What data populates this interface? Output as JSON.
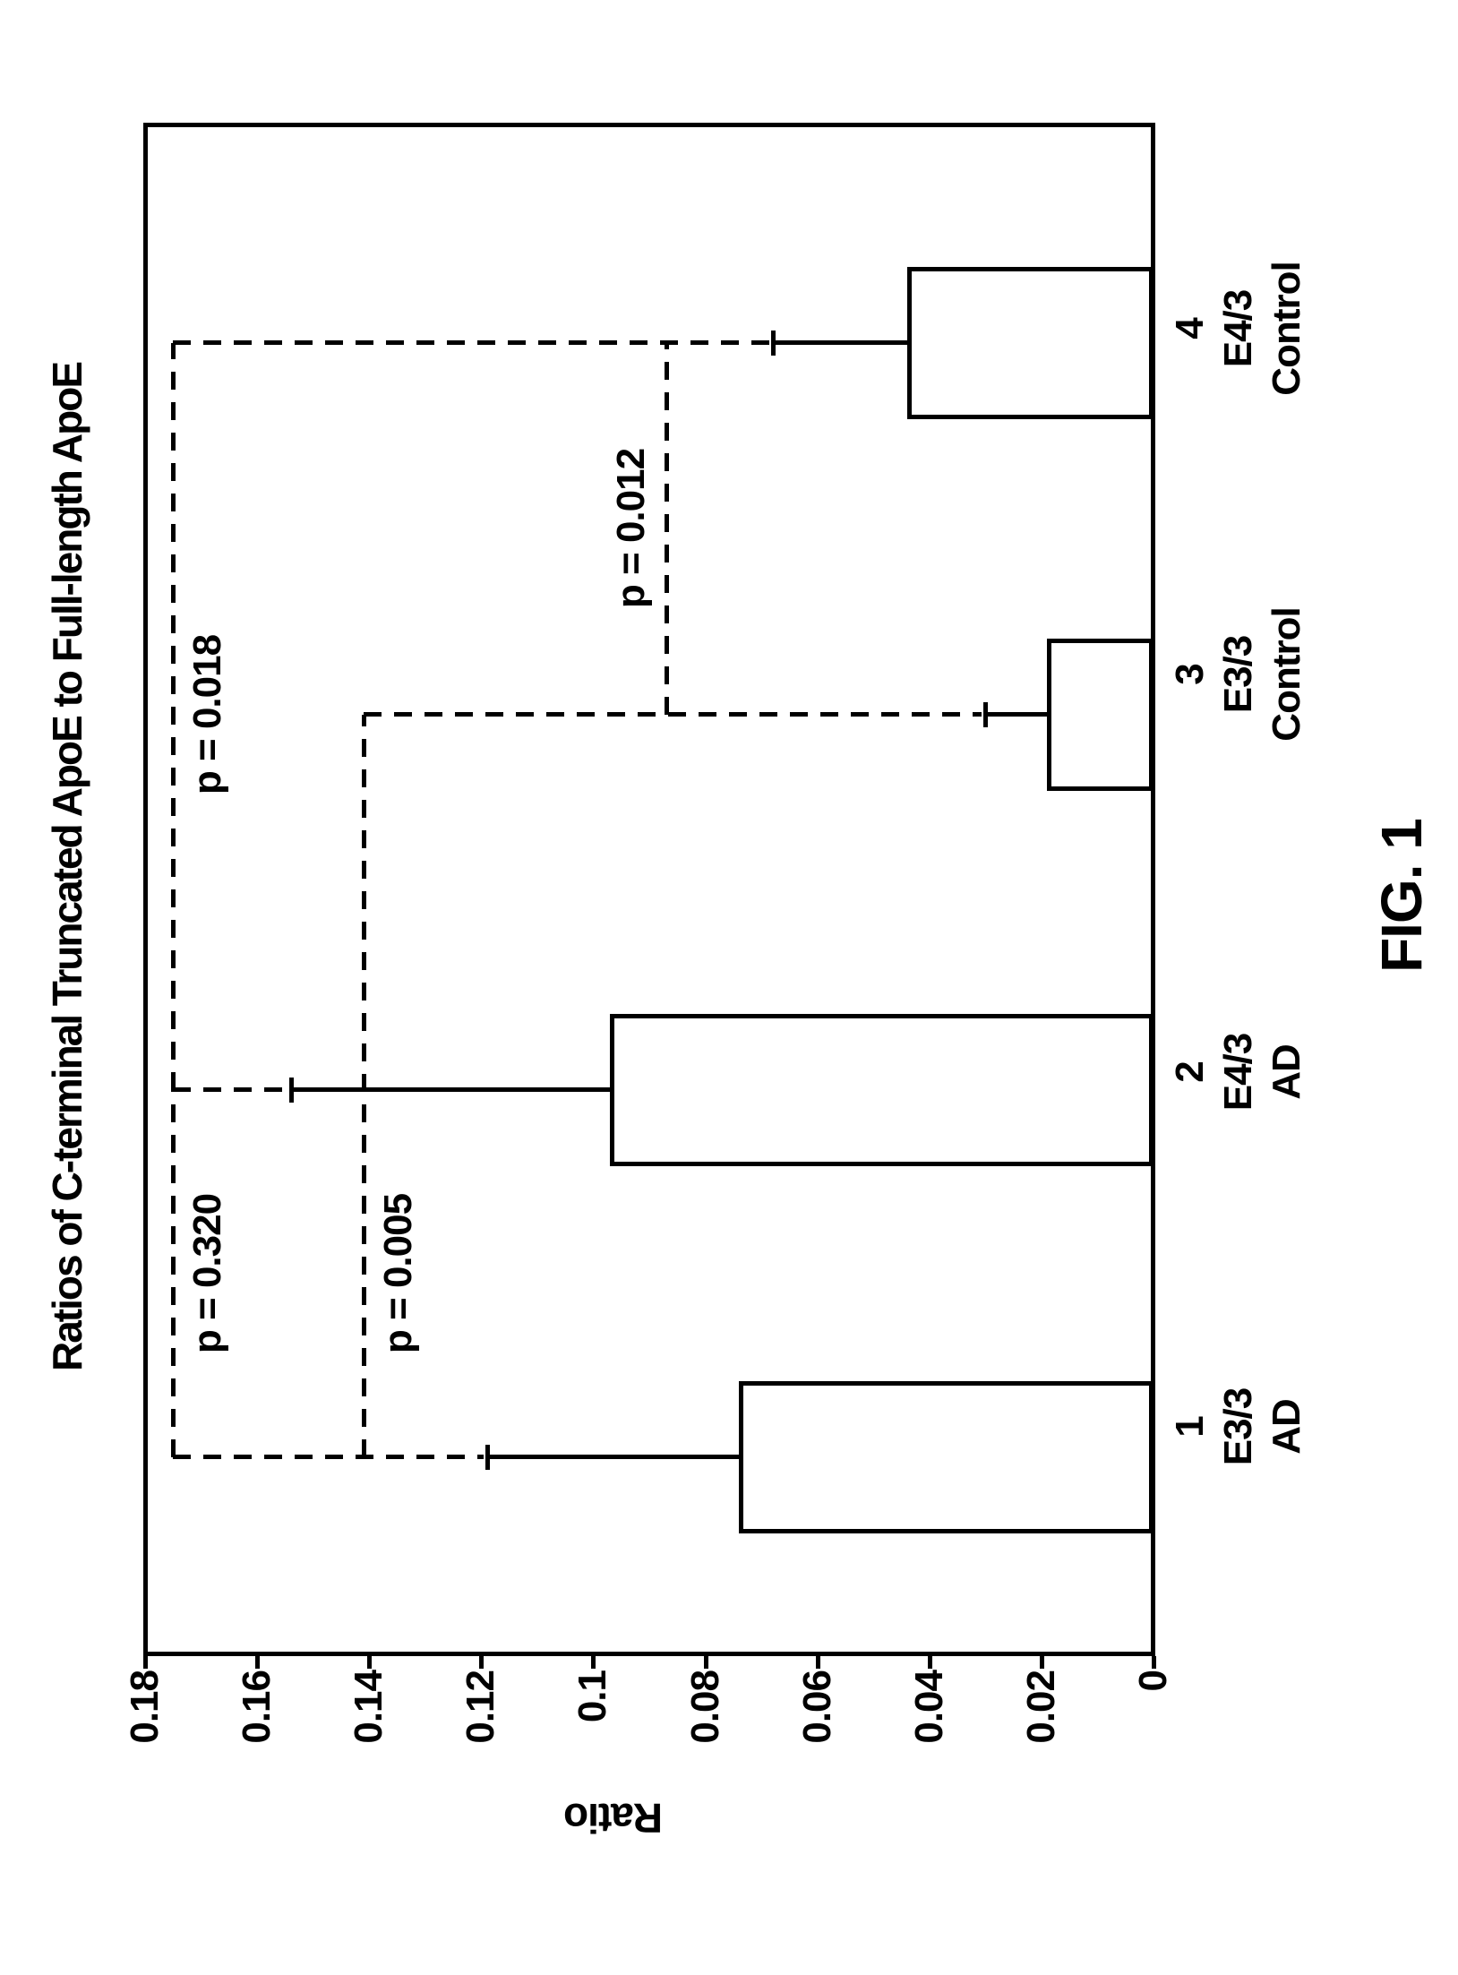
{
  "figure_label": "FIG. 1",
  "colors": {
    "ink": "#000000",
    "paper": "#ffffff"
  },
  "chart_data": {
    "type": "bar",
    "title": "Ratios of C-terminal Truncated ApoE to Full-length ApoE",
    "ylabel": "Ratio",
    "ylim": [
      0,
      0.18
    ],
    "ytick_step": 0.02,
    "ytick_labels": [
      "0.18",
      "0.16",
      "0.14",
      "0.12",
      "0.1",
      "0.08",
      "0.06",
      "0.04",
      "0.02",
      "0"
    ],
    "grid": "off",
    "bar_fill": "white",
    "categories": [
      {
        "number": "1",
        "genotype": "E3/3",
        "group": "AD",
        "value": 0.074,
        "error": 0.045
      },
      {
        "number": "2",
        "genotype": "E4/3",
        "group": "AD",
        "value": 0.097,
        "error": 0.057
      },
      {
        "number": "3",
        "genotype": "E3/3",
        "group": "Control",
        "value": 0.019,
        "error": 0.011
      },
      {
        "number": "4",
        "genotype": "E4/3",
        "group": "Control",
        "value": 0.044,
        "error": 0.024
      }
    ],
    "comparisons": [
      {
        "label": "p = 0.320",
        "between": [
          1,
          2
        ],
        "height": 0.175
      },
      {
        "label": "p = 0.005",
        "between": [
          1,
          3
        ],
        "height": 0.141
      },
      {
        "label": "p = 0.018",
        "between": [
          2,
          4
        ],
        "height": 0.175
      },
      {
        "label": "p = 0.012",
        "between": [
          3,
          4
        ],
        "height": 0.087
      }
    ]
  }
}
